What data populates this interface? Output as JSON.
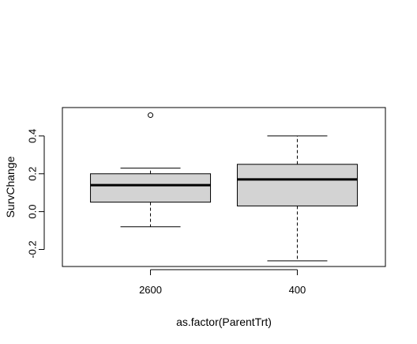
{
  "chart_data": {
    "type": "boxplot",
    "title": "",
    "xlabel": "as.factor(ParentTrt)",
    "ylabel": "SurvChange",
    "ylim": [
      -0.29,
      0.55
    ],
    "yticks": [
      -0.2,
      0.0,
      0.2,
      0.4
    ],
    "ytick_labels": [
      "-0.2",
      "0.0",
      "0.2",
      "0.4"
    ],
    "categories": [
      "2600",
      "400"
    ],
    "boxes": [
      {
        "category": "2600",
        "whisker_low": -0.08,
        "q1": 0.05,
        "median": 0.14,
        "q3": 0.2,
        "whisker_high": 0.23,
        "outliers": [
          0.51
        ]
      },
      {
        "category": "400",
        "whisker_low": -0.26,
        "q1": 0.03,
        "median": 0.17,
        "q3": 0.25,
        "whisker_high": 0.4,
        "outliers": []
      }
    ],
    "box_fill": "#d3d3d3",
    "line_color": "#000000",
    "grid": false,
    "legend": "none"
  }
}
